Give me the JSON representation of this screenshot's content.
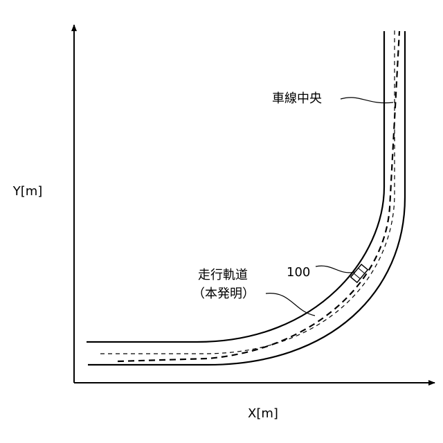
{
  "axes": {
    "y_label": "Y[m]",
    "x_label": "X[m]"
  },
  "labels": {
    "lane_center": "車線中央",
    "trajectory_line1": "走行軌道",
    "trajectory_line2": "（本発明）",
    "vehicle": "100"
  }
}
